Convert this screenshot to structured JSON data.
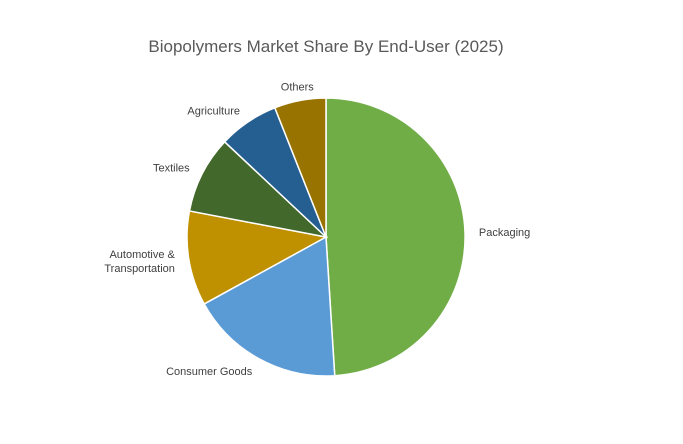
{
  "chart_data": {
    "type": "pie",
    "title": "Biopolymers Market Share By End-User (2025)",
    "slices": [
      {
        "label": "Packaging",
        "lines": [
          "Packaging"
        ],
        "value": 49,
        "color": "#70AD47"
      },
      {
        "label": "Consumer Goods",
        "lines": [
          "Consumer Goods"
        ],
        "value": 18,
        "color": "#5B9BD5"
      },
      {
        "label": "Automotive & Transportation",
        "lines": [
          "Automotive &",
          "Transportation"
        ],
        "value": 11,
        "color": "#BF9000"
      },
      {
        "label": "Textiles",
        "lines": [
          "Textiles"
        ],
        "value": 9,
        "color": "#43682B"
      },
      {
        "label": "Agriculture",
        "lines": [
          "Agriculture"
        ],
        "value": 7,
        "color": "#255E91"
      },
      {
        "label": "Others",
        "lines": [
          "Others"
        ],
        "value": 6,
        "color": "#997300"
      }
    ],
    "legend": "none",
    "data_labels": "category-name-outside"
  }
}
